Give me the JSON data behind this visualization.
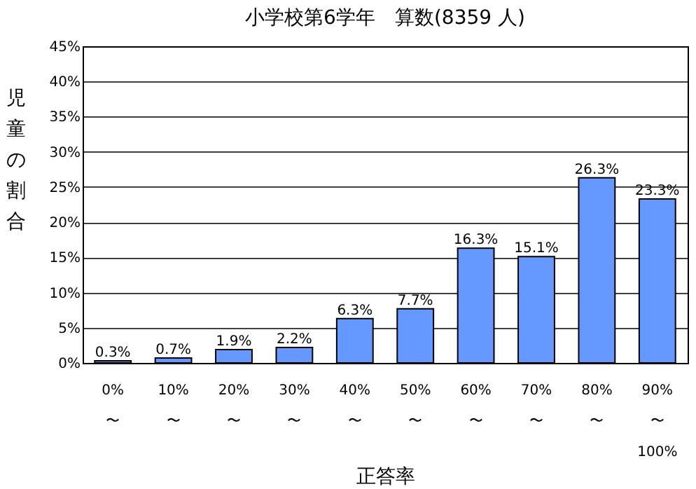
{
  "chart_data": {
    "type": "bar",
    "title": "小学校第6学年　算数(8359 人)",
    "xlabel": "正答率",
    "ylabel": "児童の割合",
    "categories": [
      "0%\n〜",
      "10%\n〜",
      "20%\n〜",
      "30%\n〜",
      "40%\n〜",
      "50%\n〜",
      "60%\n〜",
      "70%\n〜",
      "80%\n〜",
      "90%\n〜\n100%"
    ],
    "values": [
      0.3,
      0.7,
      1.9,
      2.2,
      6.3,
      7.7,
      16.3,
      15.1,
      26.3,
      23.3
    ],
    "value_labels": [
      "0.3%",
      "0.7%",
      "1.9%",
      "2.2%",
      "6.3%",
      "7.7%",
      "16.3%",
      "15.1%",
      "26.3%",
      "23.3%"
    ],
    "color": "#6699ff",
    "ylim": [
      0,
      45
    ],
    "yticks": [
      {
        "value": 0,
        "label": "0%"
      },
      {
        "value": 5,
        "label": "5%"
      },
      {
        "value": 10,
        "label": "10%"
      },
      {
        "value": 15,
        "label": "15%"
      },
      {
        "value": 20,
        "label": "20%"
      },
      {
        "value": 25,
        "label": "25%"
      },
      {
        "value": 30,
        "label": "30%"
      },
      {
        "value": 35,
        "label": "35%"
      },
      {
        "value": 40,
        "label": "40%"
      },
      {
        "value": 45,
        "label": "45%"
      }
    ],
    "grid": "y"
  }
}
